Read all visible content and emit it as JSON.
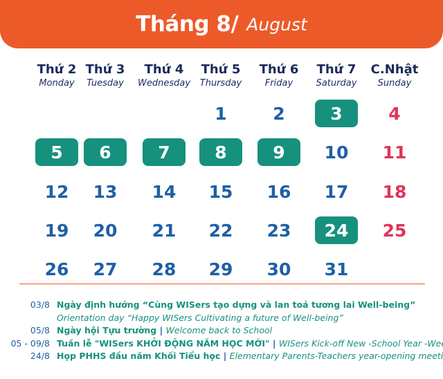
{
  "header": {
    "title_vi": "Tháng 8/",
    "title_en": "August",
    "bg_color": "#ed5a2a"
  },
  "weekdays": [
    {
      "vi": "Thứ 2",
      "en": "Monday"
    },
    {
      "vi": "Thứ 3",
      "en": "Tuesday"
    },
    {
      "vi": "Thứ 4",
      "en": "Wednesday"
    },
    {
      "vi": "Thứ 5",
      "en": "Thursday"
    },
    {
      "vi": "Thứ 6",
      "en": "Friday"
    },
    {
      "vi": "Thứ 7",
      "en": "Saturday"
    },
    {
      "vi": "C.Nhật",
      "en": "Sunday"
    }
  ],
  "days": [
    {
      "n": "1",
      "highlight": false
    },
    {
      "n": "2",
      "highlight": false
    },
    {
      "n": "3",
      "highlight": true
    },
    {
      "n": "4",
      "highlight": false
    },
    {
      "n": "5",
      "highlight": true
    },
    {
      "n": "6",
      "highlight": true
    },
    {
      "n": "7",
      "highlight": true
    },
    {
      "n": "8",
      "highlight": true
    },
    {
      "n": "9",
      "highlight": true
    },
    {
      "n": "10",
      "highlight": false
    },
    {
      "n": "11",
      "highlight": false
    },
    {
      "n": "12",
      "highlight": false
    },
    {
      "n": "13",
      "highlight": false
    },
    {
      "n": "14",
      "highlight": false
    },
    {
      "n": "15",
      "highlight": false
    },
    {
      "n": "16",
      "highlight": false
    },
    {
      "n": "17",
      "highlight": false
    },
    {
      "n": "18",
      "highlight": false
    },
    {
      "n": "19",
      "highlight": false
    },
    {
      "n": "20",
      "highlight": false
    },
    {
      "n": "21",
      "highlight": false
    },
    {
      "n": "22",
      "highlight": false
    },
    {
      "n": "23",
      "highlight": false
    },
    {
      "n": "24",
      "highlight": true
    },
    {
      "n": "25",
      "highlight": false
    },
    {
      "n": "26",
      "highlight": false
    },
    {
      "n": "27",
      "highlight": false
    },
    {
      "n": "28",
      "highlight": false
    },
    {
      "n": "29",
      "highlight": false
    },
    {
      "n": "30",
      "highlight": false
    },
    {
      "n": "31",
      "highlight": false
    }
  ],
  "events": [
    {
      "date": "03/8",
      "vi": "Ngày định hướng “Cùng WISers tạo dựng và lan toả tương lai Well-being”",
      "sep": "",
      "en": ""
    },
    {
      "date": "",
      "vi": "",
      "sep": "",
      "en": "Orientation day “Happy WISers Cultivating a future of Well-being”"
    },
    {
      "date": "05/8",
      "vi": "Ngày hội Tựu trường",
      "sep": " | ",
      "en": "Welcome back to School"
    },
    {
      "date": "05 - 09/8",
      "vi": "Tuần lễ \"WISers KHỞI ĐỘNG NĂM HỌC MỚI\"",
      "sep": " | ",
      "en": "WISers Kick-off New -School Year -Week"
    },
    {
      "date": "24/8",
      "vi": "Họp PHHS đầu năm Khối Tiểu học",
      "sep": " | ",
      "en": "Elementary Parents-Teachers year-opening meeting"
    }
  ],
  "colors": {
    "accent_orange": "#ed5a2a",
    "event_green": "#16917d",
    "day_blue": "#1f5fa6",
    "sunday_red": "#e1345a",
    "header_navy": "#1b2a5c"
  }
}
